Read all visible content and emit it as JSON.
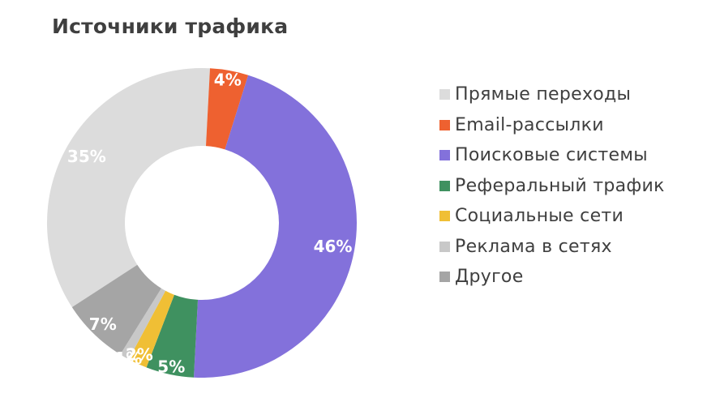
{
  "chart_data": {
    "type": "pie",
    "title": "Источники трафика",
    "categories": [
      "Прямые переходы",
      "Email-рассылки",
      "Поисковые системы",
      "Реферальный трафик",
      "Социальные сети",
      "Реклама в сетях",
      "Другое"
    ],
    "values": [
      35,
      4,
      46,
      5,
      2,
      1,
      7
    ],
    "value_labels": [
      "35%",
      "4%",
      "46%",
      "5%",
      "2%",
      "1%",
      "7%"
    ],
    "colors": [
      "#dcdcdc",
      "#ee6130",
      "#8371db",
      "#3f9160",
      "#f0bf35",
      "#c8c8c8",
      "#a5a5a5"
    ],
    "hole": true,
    "legend": "right"
  }
}
